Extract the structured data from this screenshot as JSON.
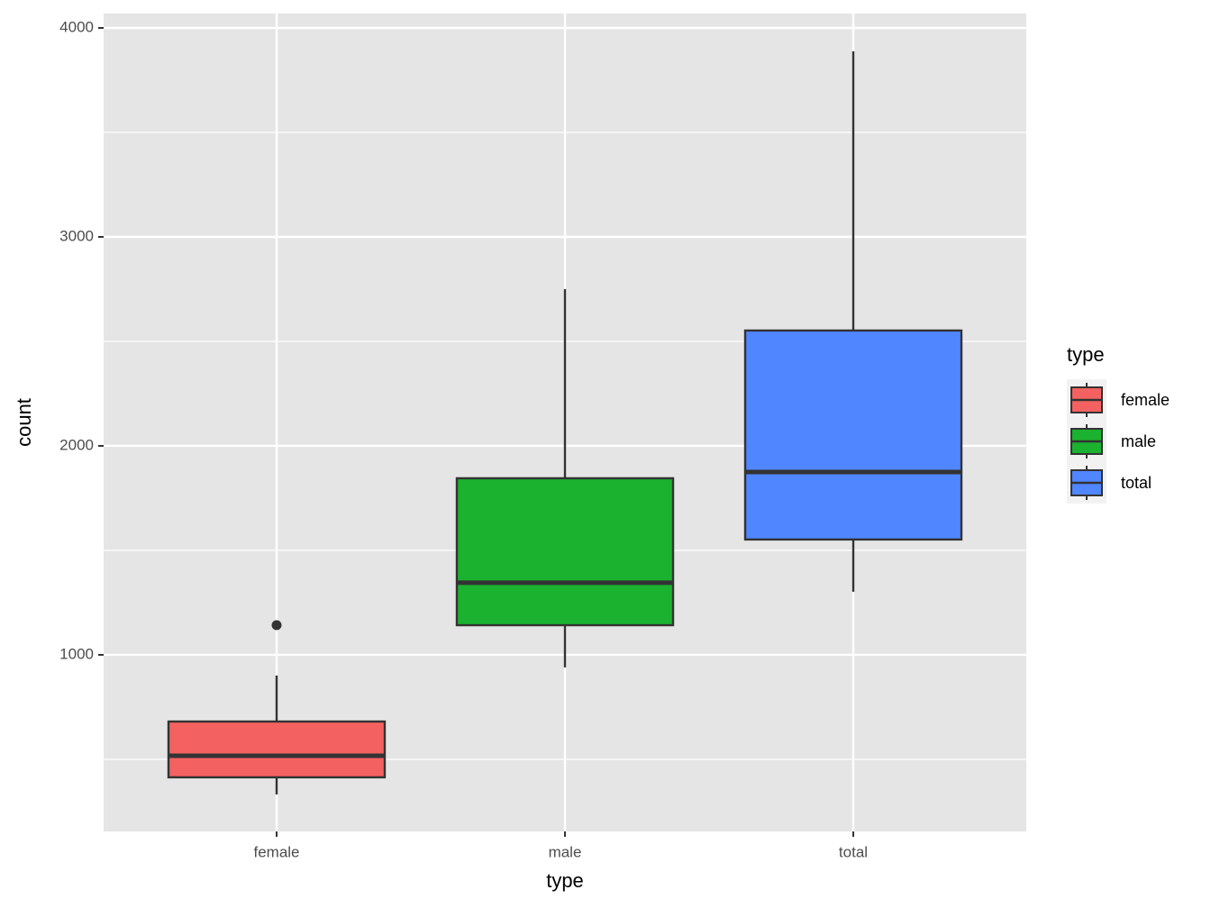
{
  "chart_data": {
    "type": "box",
    "x_label": "type",
    "y_label": "count",
    "legend_title": "type",
    "categories": [
      "female",
      "male",
      "total"
    ],
    "series": [
      {
        "name": "female",
        "color": "#f36260",
        "whisker_low": 332,
        "q1": 414,
        "median": 517,
        "q3": 681,
        "whisker_high": 901,
        "outliers": [
          1142
        ]
      },
      {
        "name": "male",
        "color": "#1ab22f",
        "whisker_low": 940,
        "q1": 1142,
        "median": 1345,
        "q3": 1845,
        "whisker_high": 2750,
        "outliers": []
      },
      {
        "name": "total",
        "color": "#5086ff",
        "whisker_low": 1302,
        "q1": 1552,
        "median": 1875,
        "q3": 2552,
        "whisker_high": 3888,
        "outliers": []
      }
    ],
    "ylim": [
      155,
      4069
    ],
    "yticks": [
      1000,
      2000,
      3000,
      4000
    ],
    "minor_yticks": [
      500,
      1500,
      2500,
      3500
    ],
    "grid": true,
    "legend": "right"
  }
}
